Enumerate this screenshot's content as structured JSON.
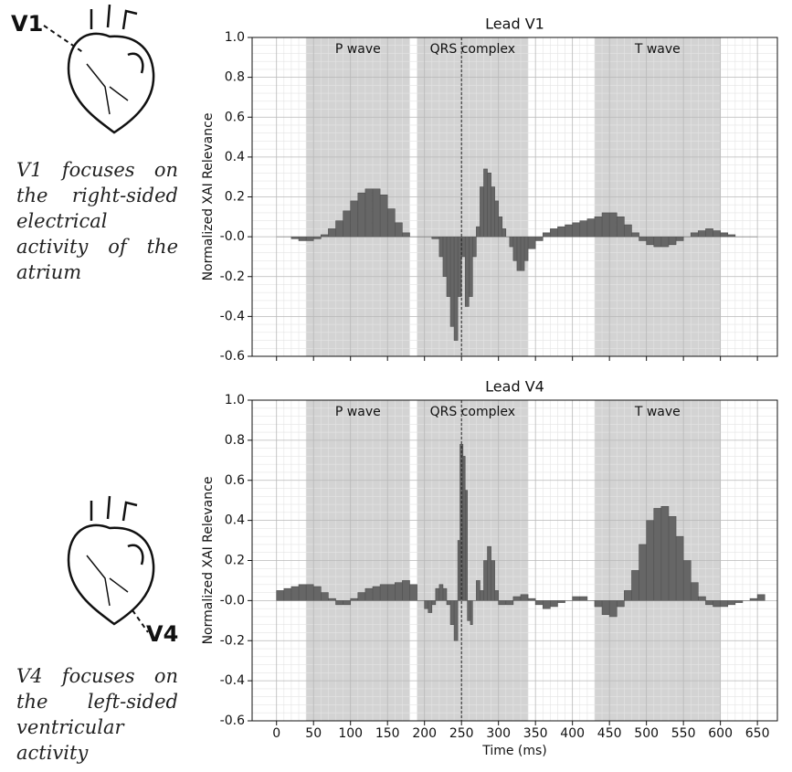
{
  "captions": [
    {
      "label": "V1",
      "text": "V1 focuses on the right-sided electrical activity of the atrium"
    },
    {
      "label": "V4",
      "text": "V4 focuses on the left-sided ventricular activity"
    }
  ],
  "chart_data": [
    {
      "type": "area",
      "title": "Lead V1",
      "ylabel": "Normalized XAI Relevance",
      "xlim": [
        -33,
        677
      ],
      "ylim": [
        -0.6,
        1.0
      ],
      "xticks": [
        0,
        50,
        100,
        150,
        200,
        250,
        300,
        350,
        400,
        450,
        500,
        550,
        600,
        650
      ],
      "yticks": [
        {
          "value": 1.0,
          "label": "1.0"
        },
        0.8,
        0.6,
        0.4,
        0.2,
        {
          "value": 0.0,
          "label": "-0.0"
        },
        -0.2,
        -0.4,
        -0.6
      ],
      "grid": true,
      "vline": 250,
      "regions": [
        {
          "label": "P wave",
          "start": 40,
          "end": 180
        },
        {
          "label": "QRS complex",
          "start": 190,
          "end": 340
        },
        {
          "label": "T wave",
          "start": 430,
          "end": 600
        }
      ],
      "x": [
        0,
        10,
        20,
        30,
        40,
        50,
        60,
        70,
        80,
        90,
        100,
        110,
        120,
        130,
        140,
        150,
        160,
        170,
        180,
        190,
        200,
        210,
        220,
        225,
        230,
        235,
        240,
        245,
        250,
        255,
        260,
        265,
        270,
        275,
        280,
        285,
        290,
        295,
        300,
        305,
        310,
        315,
        320,
        325,
        330,
        335,
        340,
        350,
        360,
        370,
        380,
        390,
        400,
        410,
        420,
        430,
        440,
        450,
        460,
        470,
        480,
        490,
        500,
        510,
        520,
        530,
        540,
        550,
        560,
        570,
        580,
        590,
        600,
        610,
        620,
        630,
        640
      ],
      "series": [
        {
          "name": "V1",
          "color": "#666666",
          "values": [
            0,
            0,
            -0.01,
            -0.02,
            -0.02,
            -0.01,
            0.01,
            0.04,
            0.08,
            0.13,
            0.18,
            0.22,
            0.24,
            0.24,
            0.21,
            0.14,
            0.07,
            0.02,
            0,
            0,
            0,
            -0.01,
            -0.1,
            -0.2,
            -0.3,
            -0.45,
            -0.52,
            -0.3,
            -0.1,
            -0.35,
            -0.3,
            -0.1,
            0.05,
            0.25,
            0.34,
            0.32,
            0.25,
            0.18,
            0.1,
            0.04,
            0,
            -0.05,
            -0.12,
            -0.17,
            -0.17,
            -0.12,
            -0.06,
            -0.02,
            0.02,
            0.04,
            0.05,
            0.06,
            0.07,
            0.08,
            0.09,
            0.1,
            0.12,
            0.12,
            0.1,
            0.06,
            0.02,
            -0.02,
            -0.04,
            -0.05,
            -0.05,
            -0.04,
            -0.02,
            0,
            0.02,
            0.03,
            0.04,
            0.03,
            0.02,
            0.01,
            0,
            0,
            0
          ]
        }
      ]
    },
    {
      "type": "area",
      "title": "Lead V4",
      "ylabel": "Normalized XAI Relevance",
      "xlabel": "Time (ms)",
      "xlim": [
        -33,
        677
      ],
      "ylim": [
        -0.6,
        1.0
      ],
      "xticks": [
        0,
        50,
        100,
        150,
        200,
        250,
        300,
        350,
        400,
        450,
        500,
        550,
        600,
        650
      ],
      "yticks": [
        {
          "value": 1.0,
          "label": "1.0"
        },
        0.8,
        0.6,
        0.4,
        0.2,
        {
          "value": 0.0,
          "label": "-0.0"
        },
        -0.2,
        -0.4,
        -0.6
      ],
      "grid": true,
      "vline": 250,
      "regions": [
        {
          "label": "P wave",
          "start": 40,
          "end": 180
        },
        {
          "label": "QRS complex",
          "start": 190,
          "end": 340
        },
        {
          "label": "T wave",
          "start": 430,
          "end": 600
        }
      ],
      "x": [
        0,
        10,
        20,
        30,
        40,
        50,
        60,
        70,
        80,
        90,
        100,
        110,
        120,
        130,
        140,
        150,
        160,
        170,
        180,
        190,
        200,
        205,
        210,
        215,
        220,
        225,
        230,
        235,
        240,
        245,
        248,
        252,
        255,
        258,
        262,
        265,
        270,
        275,
        280,
        285,
        290,
        295,
        300,
        310,
        320,
        330,
        340,
        350,
        360,
        370,
        380,
        390,
        400,
        410,
        420,
        430,
        440,
        450,
        460,
        470,
        480,
        490,
        500,
        510,
        520,
        530,
        540,
        550,
        560,
        570,
        580,
        590,
        600,
        610,
        620,
        630,
        640,
        650
      ],
      "series": [
        {
          "name": "V4",
          "color": "#666666",
          "values": [
            0.05,
            0.06,
            0.07,
            0.08,
            0.08,
            0.07,
            0.04,
            0.01,
            -0.02,
            -0.02,
            0.01,
            0.04,
            0.06,
            0.07,
            0.08,
            0.08,
            0.09,
            0.1,
            0.08,
            0,
            -0.04,
            -0.06,
            -0.02,
            0.06,
            0.08,
            0.06,
            -0.02,
            -0.12,
            -0.2,
            0.3,
            0.78,
            0.72,
            0.55,
            -0.1,
            -0.12,
            0,
            0.1,
            0.05,
            0.2,
            0.27,
            0.2,
            0.05,
            -0.02,
            -0.02,
            0.02,
            0.03,
            0.01,
            -0.02,
            -0.04,
            -0.03,
            -0.01,
            0,
            0.02,
            0.02,
            0,
            -0.03,
            -0.07,
            -0.08,
            -0.03,
            0.05,
            0.15,
            0.28,
            0.4,
            0.46,
            0.47,
            0.42,
            0.32,
            0.2,
            0.09,
            0.02,
            -0.02,
            -0.03,
            -0.03,
            -0.02,
            -0.01,
            0,
            0.01,
            0.03
          ]
        }
      ]
    }
  ]
}
